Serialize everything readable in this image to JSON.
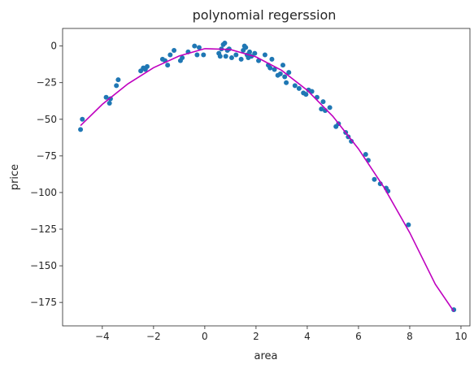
{
  "chart_data": {
    "type": "scatter",
    "title": "polynomial regerssion",
    "xlabel": "area",
    "ylabel": "price",
    "xlim": [
      -5.55,
      10.35
    ],
    "ylim": [
      -191,
      12
    ],
    "xticks": [
      -4,
      -2,
      0,
      2,
      4,
      6,
      8,
      10
    ],
    "yticks": [
      0,
      -25,
      -50,
      -75,
      -100,
      -125,
      -150,
      -175
    ],
    "grid": false,
    "colors": {
      "points": "#1f77b4",
      "fit_line": "#bf00bf",
      "axes": "#262626"
    },
    "series": [
      {
        "kind": "scatter",
        "x": [
          -4.85,
          -4.78,
          -3.85,
          -3.72,
          -3.68,
          -3.45,
          -3.38,
          -2.5,
          -2.4,
          -2.32,
          -2.25,
          -1.65,
          -1.55,
          -1.45,
          -1.35,
          -1.2,
          -0.95,
          -0.88,
          -0.65,
          -0.4,
          -0.3,
          -0.22,
          -0.05,
          0.55,
          0.6,
          0.65,
          0.72,
          0.78,
          0.82,
          0.88,
          0.95,
          1.05,
          1.22,
          1.42,
          1.5,
          1.55,
          1.6,
          1.65,
          1.7,
          1.75,
          1.82,
          1.95,
          2.1,
          2.35,
          2.48,
          2.55,
          2.62,
          2.72,
          2.85,
          2.95,
          3.05,
          3.12,
          3.18,
          3.28,
          3.52,
          3.68,
          3.85,
          3.95,
          4.05,
          4.18,
          4.38,
          4.55,
          4.62,
          4.7,
          4.88,
          5.12,
          5.22,
          5.5,
          5.6,
          5.72,
          6.28,
          6.38,
          6.62,
          6.85,
          7.08,
          7.15,
          7.95,
          9.72
        ],
        "y": [
          -57,
          -50,
          -35,
          -39,
          -36,
          -27,
          -23,
          -17,
          -15,
          -16,
          -14,
          -9,
          -10,
          -13,
          -6,
          -3,
          -10,
          -8,
          -4,
          0,
          -6,
          -1,
          -6,
          -5,
          -7,
          -2,
          1,
          2,
          -7,
          -3,
          -2,
          -8,
          -6,
          -9,
          -3,
          0,
          -1,
          -6,
          -8,
          -4,
          -7,
          -5,
          -10,
          -6,
          -13,
          -15,
          -9,
          -16,
          -20,
          -19,
          -13,
          -21,
          -25,
          -18,
          -27,
          -29,
          -32,
          -33,
          -30,
          -31,
          -35,
          -43,
          -38,
          -44,
          -42,
          -55,
          -53,
          -59,
          -62,
          -65,
          -74,
          -78,
          -91,
          -94,
          -97,
          -99,
          -122,
          -180
        ]
      },
      {
        "kind": "line",
        "x": [
          -4.85,
          -4,
          -3,
          -2,
          -1,
          0,
          1,
          2,
          3,
          4,
          5,
          6,
          7,
          8,
          9,
          9.72
        ],
        "y": [
          -54.3,
          -39.8,
          -25.8,
          -14.8,
          -6.8,
          -1.8,
          -2.4,
          -7.4,
          -16.6,
          -30.2,
          -48.0,
          -70.2,
          -96.6,
          -127.4,
          -162.6,
          -181.1
        ]
      }
    ]
  }
}
